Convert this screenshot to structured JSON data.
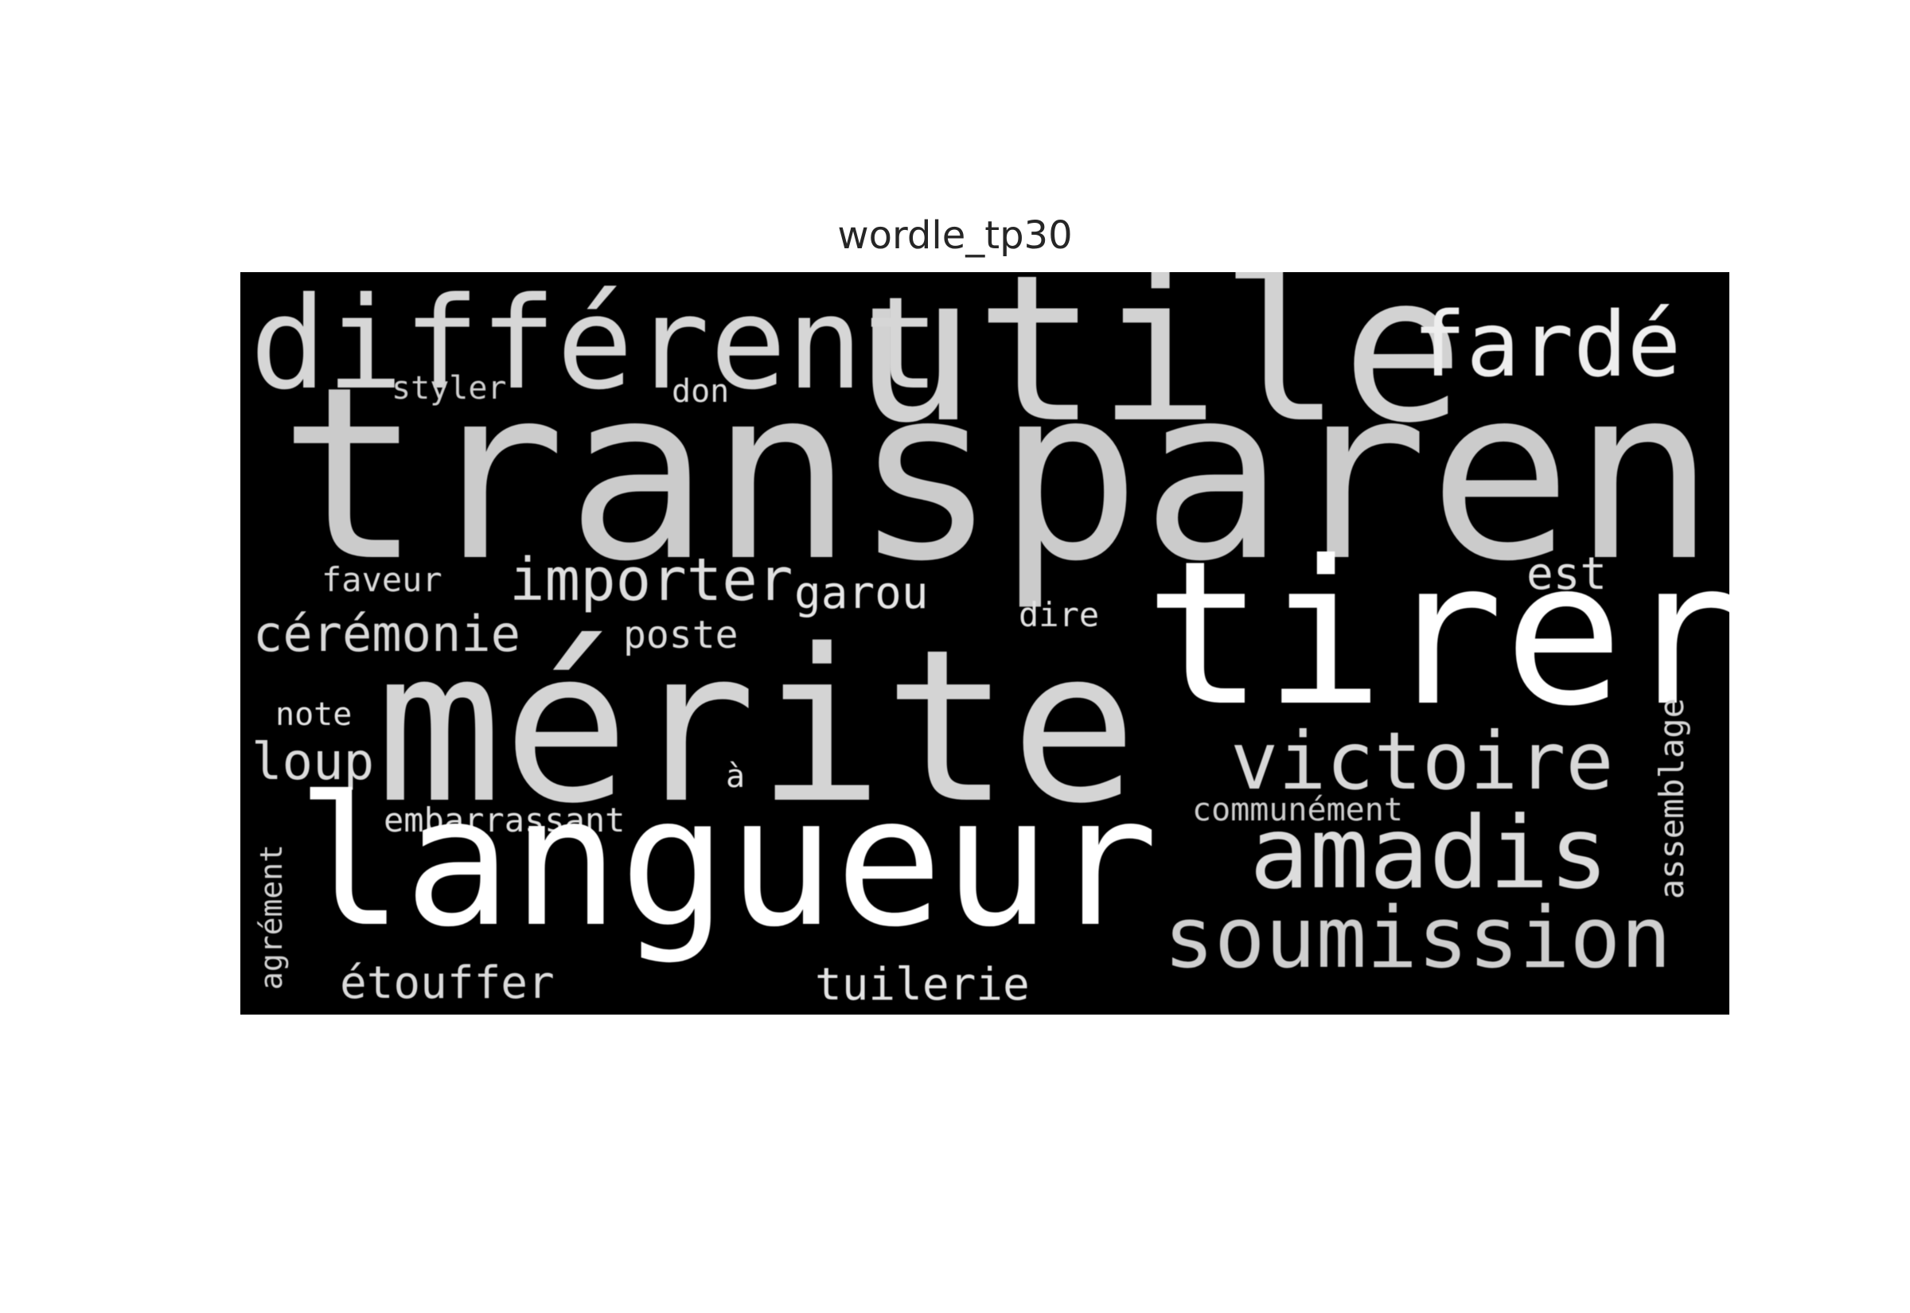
{
  "figure": {
    "title": "wordle_tp30"
  },
  "cloud": {
    "background_color": "#000000",
    "words": [
      {
        "key": "utile",
        "text": "utile",
        "color": "#d2d2d2"
      },
      {
        "key": "different",
        "text": "différent",
        "color": "#d6d6d6"
      },
      {
        "key": "farde",
        "text": "fardé",
        "color": "#eeeeee"
      },
      {
        "key": "styler",
        "text": "styler",
        "color": "#cfcfcf"
      },
      {
        "key": "don",
        "text": "don",
        "color": "#dddddd"
      },
      {
        "key": "transparent",
        "text": "transparent",
        "color": "#cbcbcb"
      },
      {
        "key": "faveur",
        "text": "faveur",
        "color": "#dadada"
      },
      {
        "key": "importer",
        "text": "importer",
        "color": "#dedede"
      },
      {
        "key": "garou",
        "text": "garou",
        "color": "#e6e6e6"
      },
      {
        "key": "est",
        "text": "est",
        "color": "#e0e0e0"
      },
      {
        "key": "dire",
        "text": "dire",
        "color": "#e2e2e2"
      },
      {
        "key": "ceremonie",
        "text": "cérémonie",
        "color": "#d9d9d9"
      },
      {
        "key": "poste",
        "text": "poste",
        "color": "#dcdcdc"
      },
      {
        "key": "tirer",
        "text": "tirer",
        "color": "#ffffff"
      },
      {
        "key": "merite",
        "text": "mérite",
        "color": "#d4d4d4"
      },
      {
        "key": "note",
        "text": "note",
        "color": "#e4e4e4"
      },
      {
        "key": "loup",
        "text": "loup",
        "color": "#dbdbdb"
      },
      {
        "key": "victoire",
        "text": "victoire",
        "color": "#d8d8d8"
      },
      {
        "key": "a",
        "text": "à",
        "color": "#e5e5e5"
      },
      {
        "key": "communement",
        "text": "communément",
        "color": "#cdcdcd"
      },
      {
        "key": "embarrassant",
        "text": "embarrassant",
        "color": "#dfdfdf"
      },
      {
        "key": "langueur",
        "text": "langueur",
        "color": "#ffffff"
      },
      {
        "key": "amadis",
        "text": "amadis",
        "color": "#dcdcdc"
      },
      {
        "key": "soumission",
        "text": "soumission",
        "color": "#cecece"
      },
      {
        "key": "etouffer",
        "text": "étouffer",
        "color": "#dadada"
      },
      {
        "key": "tuilerie",
        "text": "tuilerie",
        "color": "#e4e4e4"
      },
      {
        "key": "assemblage",
        "text": "assemblage",
        "color": "#d6d6d6"
      },
      {
        "key": "agrement",
        "text": "agrément",
        "color": "#d3d3d3"
      }
    ]
  }
}
